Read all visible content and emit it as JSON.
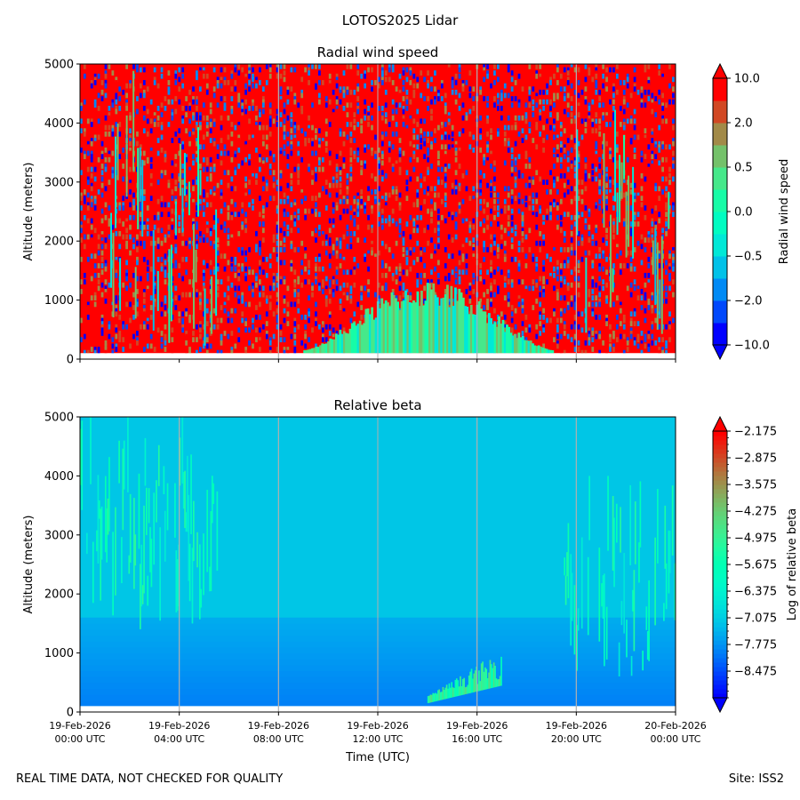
{
  "figure": {
    "title": "LOTOS2025 Lidar",
    "footer_left": "REAL TIME DATA, NOT CHECKED FOR QUALITY",
    "footer_right": "Site: ISS2"
  },
  "chart_data": [
    {
      "type": "heatmap",
      "title": "Radial wind speed",
      "ylabel": "Altitude (meters)",
      "ylim": [
        0,
        5000
      ],
      "yticks": [
        0,
        1000,
        2000,
        3000,
        4000,
        5000
      ],
      "ytick_labels": [
        "0",
        "1000",
        "2000",
        "3000",
        "4000",
        "5000"
      ],
      "xlim_hours": [
        0,
        24
      ],
      "xticks_hours": [
        0,
        4,
        8,
        12,
        16,
        20,
        24
      ],
      "xtick_labels": [],
      "vertical_gridlines_hours": [
        8,
        12,
        16,
        20
      ],
      "colormap": "rainbow",
      "colorbar": {
        "label": "Radial wind speed",
        "extend": "both",
        "levels": [
          -10.0,
          -5.0,
          -2.0,
          -1.0,
          -0.5,
          -0.2,
          0.0,
          0.2,
          0.5,
          1.0,
          2.0,
          5.0,
          10.0
        ],
        "tick_values": [
          -10.0,
          -2.0,
          -0.5,
          0.0,
          0.5,
          2.0,
          10.0
        ],
        "tick_labels": [
          "−10.0",
          "−2.0",
          "−0.5",
          "0.0",
          "0.5",
          "2.0",
          "10.0"
        ]
      },
      "features": [
        {
          "description": "noisy field, mostly strong positive values",
          "value": 8.0
        },
        {
          "description": "calm band near surface",
          "t_start": 9,
          "t_end": 19,
          "z_top": 1200,
          "value": 0.1
        },
        {
          "description": "cloud streaks early morning",
          "t_start": 0.5,
          "t_end": 5.5,
          "value": -0.5
        },
        {
          "description": "cloud streaks evening",
          "t_start": 20,
          "t_end": 24,
          "value": -0.4
        }
      ]
    },
    {
      "type": "heatmap",
      "title": "Relative beta",
      "ylabel": "Altitude (meters)",
      "xlabel": "Time (UTC)",
      "ylim": [
        0,
        5000
      ],
      "yticks": [
        0,
        1000,
        2000,
        3000,
        4000,
        5000
      ],
      "ytick_labels": [
        "0",
        "1000",
        "2000",
        "3000",
        "4000",
        "5000"
      ],
      "xlim_hours": [
        0,
        24
      ],
      "xticks_hours": [
        0,
        4,
        8,
        12,
        16,
        20,
        24
      ],
      "xtick_labels": [
        [
          "19-Feb-2026",
          "00:00 UTC"
        ],
        [
          "19-Feb-2026",
          "04:00 UTC"
        ],
        [
          "19-Feb-2026",
          "08:00 UTC"
        ],
        [
          "19-Feb-2026",
          "12:00 UTC"
        ],
        [
          "19-Feb-2026",
          "16:00 UTC"
        ],
        [
          "19-Feb-2026",
          "20:00 UTC"
        ],
        [
          "20-Feb-2026",
          "00:00 UTC"
        ]
      ],
      "vertical_gridlines_hours": [
        4,
        8,
        12,
        16,
        20
      ],
      "colormap": "rainbow",
      "colorbar": {
        "label": "Log of relative beta",
        "extend": "both",
        "vmin": -9.175,
        "vmax": -2.175,
        "tick_values": [
          -2.175,
          -2.875,
          -3.575,
          -4.275,
          -4.975,
          -5.675,
          -6.375,
          -7.075,
          -7.775,
          -8.475
        ],
        "tick_labels": [
          "−2.175",
          "−2.875",
          "−3.575",
          "−4.275",
          "−4.975",
          "−5.675",
          "−6.375",
          "−7.075",
          "−7.775",
          "−8.475"
        ]
      },
      "features": [
        {
          "description": "background upper air",
          "value": -7.2
        },
        {
          "description": "boundary layer",
          "z_top": 1600,
          "value": -8.0
        },
        {
          "description": "cloud plumes early morning",
          "t_start": 0,
          "t_end": 5.5,
          "z_bottom": 1300,
          "z_top": 5000,
          "value": -5.8
        },
        {
          "description": "cloud plumes evening",
          "t_start": 19.5,
          "t_end": 24,
          "z_bottom": 600,
          "z_top": 4000,
          "value": -5.9
        },
        {
          "description": "low aerosol layer",
          "t_start": 14,
          "t_end": 17,
          "z_bottom": 150,
          "z_top": 1100,
          "value": -5.2
        }
      ]
    }
  ]
}
